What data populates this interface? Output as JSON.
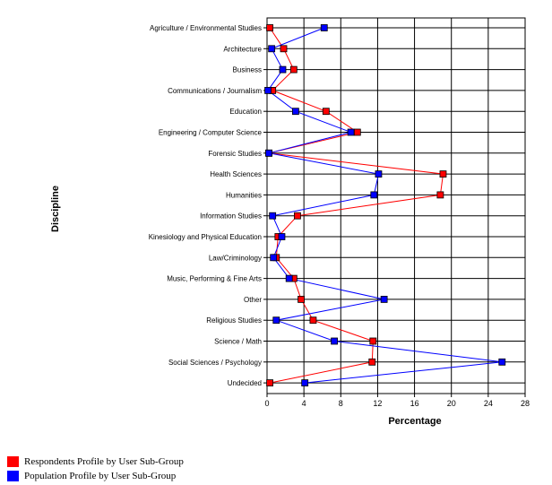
{
  "chart_data": {
    "type": "line",
    "orientation": "horizontal",
    "xlabel": "Percentage",
    "ylabel": "Discipline",
    "xlim": [
      0,
      28
    ],
    "xticks": [
      0,
      4,
      8,
      12,
      16,
      20,
      24,
      28
    ],
    "grid": true,
    "legend_position": "bottom-left",
    "categories": [
      "Agriculture / Environmental Studies",
      "Architecture",
      "Business",
      "Communications / Journalism",
      "Education",
      "Engineering / Computer Science",
      "Forensic Studies",
      "Health Sciences",
      "Humanities",
      "Information Studies",
      "Kinesiology and Physical Education",
      "Law/Criminology",
      "Music, Performing & Fine Arts",
      "Other",
      "Religious Studies",
      "Science / Math",
      "Social Sciences / Psychology",
      "Undecided"
    ],
    "series": [
      {
        "name": "Respondents Profile by User Sub-Group",
        "color": "#ff0000",
        "values": [
          0.3,
          1.8,
          2.9,
          0.6,
          6.4,
          9.8,
          0.2,
          19.1,
          18.8,
          3.3,
          1.2,
          1.0,
          2.9,
          3.7,
          5.0,
          11.5,
          11.4,
          0.3
        ]
      },
      {
        "name": "Population Profile by User Sub-Group",
        "color": "#0000ff",
        "values": [
          6.2,
          0.5,
          1.7,
          0.1,
          3.1,
          9.1,
          0.2,
          12.1,
          11.6,
          0.6,
          1.6,
          0.7,
          2.4,
          12.7,
          1.0,
          7.3,
          25.5,
          4.1
        ]
      }
    ]
  }
}
